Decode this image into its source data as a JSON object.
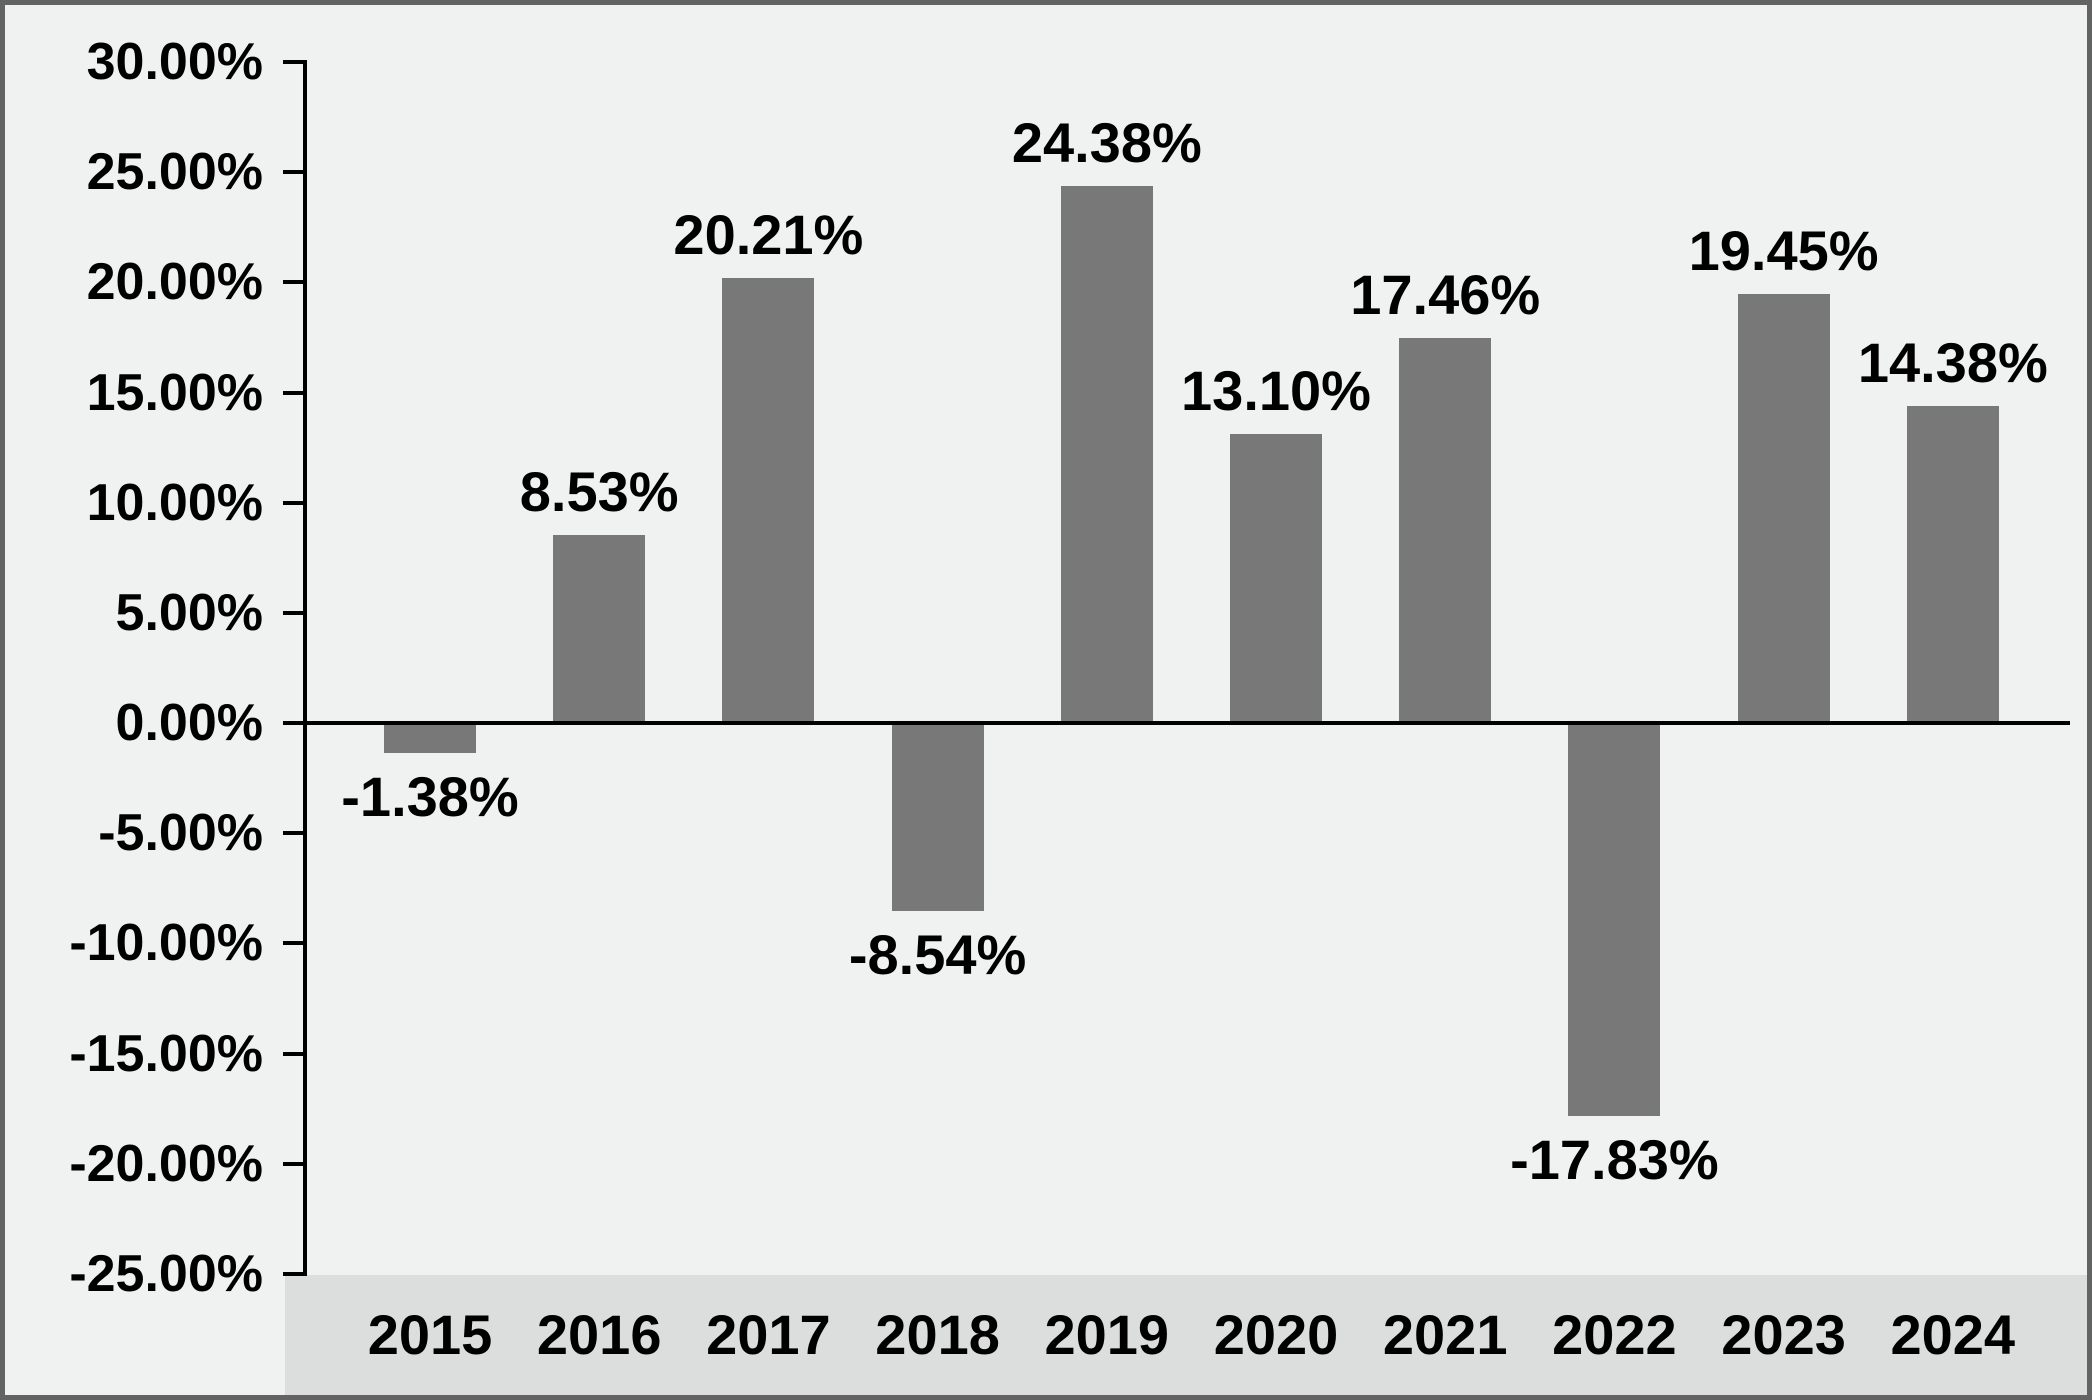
{
  "chart_data": {
    "type": "bar",
    "title": "",
    "xlabel": "",
    "ylabel": "",
    "categories": [
      "2015",
      "2016",
      "2017",
      "2018",
      "2019",
      "2020",
      "2021",
      "2022",
      "2023",
      "2024"
    ],
    "values": [
      -1.38,
      8.53,
      20.21,
      -8.54,
      24.38,
      13.1,
      17.46,
      -17.83,
      19.45,
      14.38
    ],
    "value_labels": [
      "-1.38%",
      "8.53%",
      "20.21%",
      "-8.54%",
      "24.38%",
      "13.10%",
      "17.46%",
      "-17.83%",
      "19.45%",
      "14.38%"
    ],
    "ylim": [
      -25,
      30
    ],
    "ytick_step": 5,
    "ytick_labels": [
      "30.00%",
      "25.00%",
      "20.00%",
      "15.00%",
      "10.00%",
      "5.00%",
      "0.00%",
      "-5.00%",
      "-10.00%",
      "-15.00%",
      "-20.00%",
      "-25.00%"
    ],
    "grid": "off",
    "legend": "none",
    "colors": {
      "bar": "#787878",
      "label": "#000000",
      "axis": "#000000",
      "background": "#f0f1f1",
      "x_band": "#dcdddd",
      "frame_border": "#636363"
    }
  }
}
